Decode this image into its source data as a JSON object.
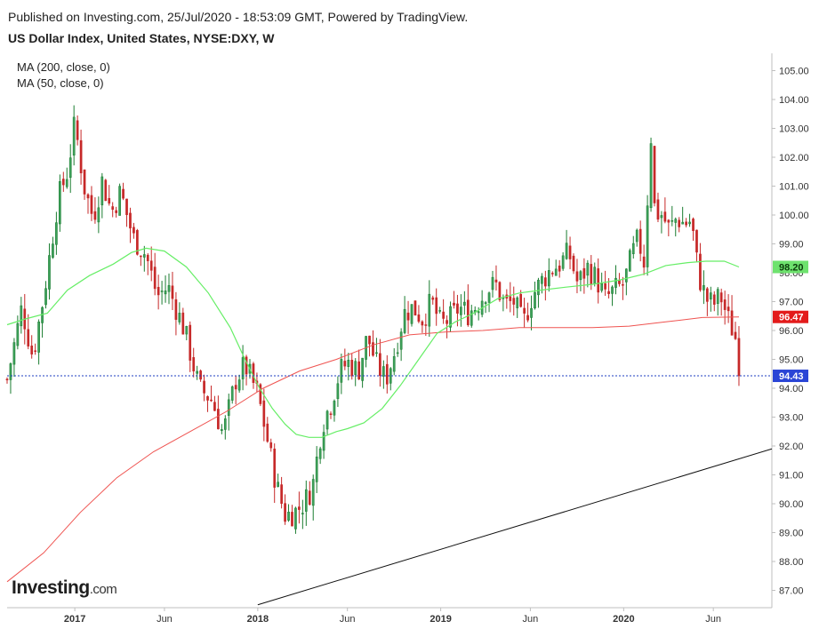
{
  "header": {
    "published": "Published on Investing.com, 25/Jul/2020 - 18:53:09 GMT, Powered by TradingView.",
    "title": "US Dollar Index, United States, NYSE:DXY, W"
  },
  "legend": {
    "ma200": "MA (200, close, 0)",
    "ma50": "MA (50, close, 0)"
  },
  "logo": {
    "brand": "Investing",
    "suffix": ".com"
  },
  "chart_data": {
    "type": "candlestick",
    "ylim": [
      86.4,
      105.6
    ],
    "y_ticks": [
      "105.00",
      "104.00",
      "103.00",
      "102.00",
      "101.00",
      "100.00",
      "99.00",
      "98.00",
      "97.00",
      "96.00",
      "95.00",
      "94.00",
      "93.00",
      "92.00",
      "91.00",
      "90.00",
      "89.00",
      "88.00",
      "87.00"
    ],
    "x_ticks": [
      {
        "label": "2017",
        "t": 0.37,
        "bold": true
      },
      {
        "label": "Jun",
        "t": 0.86,
        "bold": false
      },
      {
        "label": "2018",
        "t": 1.37,
        "bold": true
      },
      {
        "label": "Jun",
        "t": 1.86,
        "bold": false
      },
      {
        "label": "2019",
        "t": 2.37,
        "bold": true
      },
      {
        "label": "Jun",
        "t": 2.86,
        "bold": false
      },
      {
        "label": "2020",
        "t": 3.37,
        "bold": true
      },
      {
        "label": "Jun",
        "t": 3.86,
        "bold": false
      }
    ],
    "xlim": [
      0.0,
      4.18
    ],
    "price_keypoints": [
      {
        "t": 0.0,
        "close": 94.3
      },
      {
        "t": 0.08,
        "close": 96.8
      },
      {
        "t": 0.14,
        "close": 95.1
      },
      {
        "t": 0.2,
        "close": 97.2
      },
      {
        "t": 0.28,
        "close": 100.6
      },
      {
        "t": 0.33,
        "close": 101.5
      },
      {
        "t": 0.37,
        "close": 103.2
      },
      {
        "t": 0.42,
        "close": 101.0
      },
      {
        "t": 0.47,
        "close": 99.9
      },
      {
        "t": 0.52,
        "close": 101.2
      },
      {
        "t": 0.57,
        "close": 100.1
      },
      {
        "t": 0.62,
        "close": 100.8
      },
      {
        "t": 0.69,
        "close": 99.2
      },
      {
        "t": 0.76,
        "close": 98.6
      },
      {
        "t": 0.82,
        "close": 97.2
      },
      {
        "t": 0.88,
        "close": 97.5
      },
      {
        "t": 0.97,
        "close": 96.0
      },
      {
        "t": 1.05,
        "close": 94.0
      },
      {
        "t": 1.12,
        "close": 93.6
      },
      {
        "t": 1.18,
        "close": 92.4
      },
      {
        "t": 1.25,
        "close": 94.3
      },
      {
        "t": 1.3,
        "close": 94.8
      },
      {
        "t": 1.37,
        "close": 93.8
      },
      {
        "t": 1.42,
        "close": 92.3
      },
      {
        "t": 1.47,
        "close": 90.7
      },
      {
        "t": 1.52,
        "close": 89.6
      },
      {
        "t": 1.57,
        "close": 89.7
      },
      {
        "t": 1.62,
        "close": 90.0
      },
      {
        "t": 1.67,
        "close": 90.6
      },
      {
        "t": 1.72,
        "close": 92.7
      },
      {
        "t": 1.77,
        "close": 93.5
      },
      {
        "t": 1.82,
        "close": 94.6
      },
      {
        "t": 1.86,
        "close": 94.9
      },
      {
        "t": 1.92,
        "close": 94.6
      },
      {
        "t": 1.97,
        "close": 95.8
      },
      {
        "t": 2.02,
        "close": 94.8
      },
      {
        "t": 2.07,
        "close": 94.3
      },
      {
        "t": 2.12,
        "close": 95.3
      },
      {
        "t": 2.17,
        "close": 96.6
      },
      {
        "t": 2.22,
        "close": 96.8
      },
      {
        "t": 2.27,
        "close": 96.4
      },
      {
        "t": 2.32,
        "close": 97.0
      },
      {
        "t": 2.37,
        "close": 96.2
      },
      {
        "t": 2.42,
        "close": 96.4
      },
      {
        "t": 2.47,
        "close": 96.8
      },
      {
        "t": 2.52,
        "close": 96.6
      },
      {
        "t": 2.57,
        "close": 96.9
      },
      {
        "t": 2.62,
        "close": 97.4
      },
      {
        "t": 2.67,
        "close": 97.6
      },
      {
        "t": 2.72,
        "close": 96.9
      },
      {
        "t": 2.77,
        "close": 97.0
      },
      {
        "t": 2.82,
        "close": 96.2
      },
      {
        "t": 2.87,
        "close": 97.2
      },
      {
        "t": 2.92,
        "close": 97.7
      },
      {
        "t": 2.97,
        "close": 98.1
      },
      {
        "t": 3.02,
        "close": 98.3
      },
      {
        "t": 3.07,
        "close": 98.7
      },
      {
        "t": 3.12,
        "close": 97.6
      },
      {
        "t": 3.17,
        "close": 98.2
      },
      {
        "t": 3.22,
        "close": 97.8
      },
      {
        "t": 3.27,
        "close": 97.1
      },
      {
        "t": 3.32,
        "close": 97.4
      },
      {
        "t": 3.37,
        "close": 97.6
      },
      {
        "t": 3.42,
        "close": 98.7
      },
      {
        "t": 3.45,
        "close": 99.2
      },
      {
        "t": 3.48,
        "close": 98.3
      },
      {
        "t": 3.52,
        "close": 102.8
      },
      {
        "t": 3.54,
        "close": 100.1
      },
      {
        "t": 3.58,
        "close": 100.0
      },
      {
        "t": 3.62,
        "close": 99.5
      },
      {
        "t": 3.66,
        "close": 99.9
      },
      {
        "t": 3.7,
        "close": 99.7
      },
      {
        "t": 3.74,
        "close": 99.8
      },
      {
        "t": 3.78,
        "close": 97.9
      },
      {
        "t": 3.82,
        "close": 97.1
      },
      {
        "t": 3.86,
        "close": 96.9
      },
      {
        "t": 3.9,
        "close": 97.2
      },
      {
        "t": 3.94,
        "close": 96.4
      },
      {
        "t": 3.98,
        "close": 95.8
      },
      {
        "t": 4.0,
        "close": 94.4
      }
    ],
    "ma50_keypoints": [
      {
        "t": 0.0,
        "v": 96.2
      },
      {
        "t": 0.1,
        "v": 96.4
      },
      {
        "t": 0.22,
        "v": 96.6
      },
      {
        "t": 0.33,
        "v": 97.4
      },
      {
        "t": 0.45,
        "v": 97.9
      },
      {
        "t": 0.58,
        "v": 98.3
      },
      {
        "t": 0.68,
        "v": 98.7
      },
      {
        "t": 0.76,
        "v": 98.85
      },
      {
        "t": 0.86,
        "v": 98.75
      },
      {
        "t": 0.98,
        "v": 98.2
      },
      {
        "t": 1.1,
        "v": 97.3
      },
      {
        "t": 1.22,
        "v": 96.1
      },
      {
        "t": 1.3,
        "v": 95.0
      },
      {
        "t": 1.38,
        "v": 94.0
      },
      {
        "t": 1.45,
        "v": 93.3
      },
      {
        "t": 1.52,
        "v": 92.75
      },
      {
        "t": 1.58,
        "v": 92.4
      },
      {
        "t": 1.65,
        "v": 92.3
      },
      {
        "t": 1.72,
        "v": 92.3
      },
      {
        "t": 1.8,
        "v": 92.5
      },
      {
        "t": 1.86,
        "v": 92.6
      },
      {
        "t": 1.95,
        "v": 92.8
      },
      {
        "t": 2.05,
        "v": 93.3
      },
      {
        "t": 2.15,
        "v": 94.1
      },
      {
        "t": 2.25,
        "v": 95.0
      },
      {
        "t": 2.35,
        "v": 95.9
      },
      {
        "t": 2.45,
        "v": 96.3
      },
      {
        "t": 2.55,
        "v": 96.6
      },
      {
        "t": 2.68,
        "v": 97.1
      },
      {
        "t": 2.8,
        "v": 97.3
      },
      {
        "t": 2.92,
        "v": 97.4
      },
      {
        "t": 3.05,
        "v": 97.5
      },
      {
        "t": 3.2,
        "v": 97.6
      },
      {
        "t": 3.35,
        "v": 97.75
      },
      {
        "t": 3.48,
        "v": 97.95
      },
      {
        "t": 3.6,
        "v": 98.25
      },
      {
        "t": 3.72,
        "v": 98.35
      },
      {
        "t": 3.82,
        "v": 98.4
      },
      {
        "t": 3.92,
        "v": 98.4
      },
      {
        "t": 4.0,
        "v": 98.2
      }
    ],
    "ma200_keypoints": [
      {
        "t": 0.0,
        "v": 87.3
      },
      {
        "t": 0.2,
        "v": 88.3
      },
      {
        "t": 0.4,
        "v": 89.7
      },
      {
        "t": 0.6,
        "v": 90.9
      },
      {
        "t": 0.8,
        "v": 91.8
      },
      {
        "t": 1.0,
        "v": 92.5
      },
      {
        "t": 1.2,
        "v": 93.2
      },
      {
        "t": 1.4,
        "v": 94.0
      },
      {
        "t": 1.6,
        "v": 94.6
      },
      {
        "t": 1.8,
        "v": 95.0
      },
      {
        "t": 2.0,
        "v": 95.5
      },
      {
        "t": 2.2,
        "v": 95.85
      },
      {
        "t": 2.4,
        "v": 95.95
      },
      {
        "t": 2.6,
        "v": 96.0
      },
      {
        "t": 2.8,
        "v": 96.1
      },
      {
        "t": 3.0,
        "v": 96.1
      },
      {
        "t": 3.2,
        "v": 96.1
      },
      {
        "t": 3.4,
        "v": 96.15
      },
      {
        "t": 3.6,
        "v": 96.3
      },
      {
        "t": 3.8,
        "v": 96.45
      },
      {
        "t": 4.0,
        "v": 96.47
      }
    ],
    "trendline": {
      "t1": 1.37,
      "v1": 86.5,
      "t2": 4.18,
      "v2": 91.9
    },
    "last_price": "94.43",
    "last_price_value": 94.43,
    "ma200_last": "96.47",
    "ma200_last_value": 96.47,
    "ma50_last": "98.20",
    "ma50_last_value": 98.2,
    "colors": {
      "up": "#26a69a",
      "up_dark": "#1b7d31",
      "down": "#c62828",
      "ma50": "#66ee66",
      "ma200": "#ef5350",
      "price_line": "#1e3cc0",
      "trend": "#111111",
      "axis": "#bfbfbf"
    }
  }
}
